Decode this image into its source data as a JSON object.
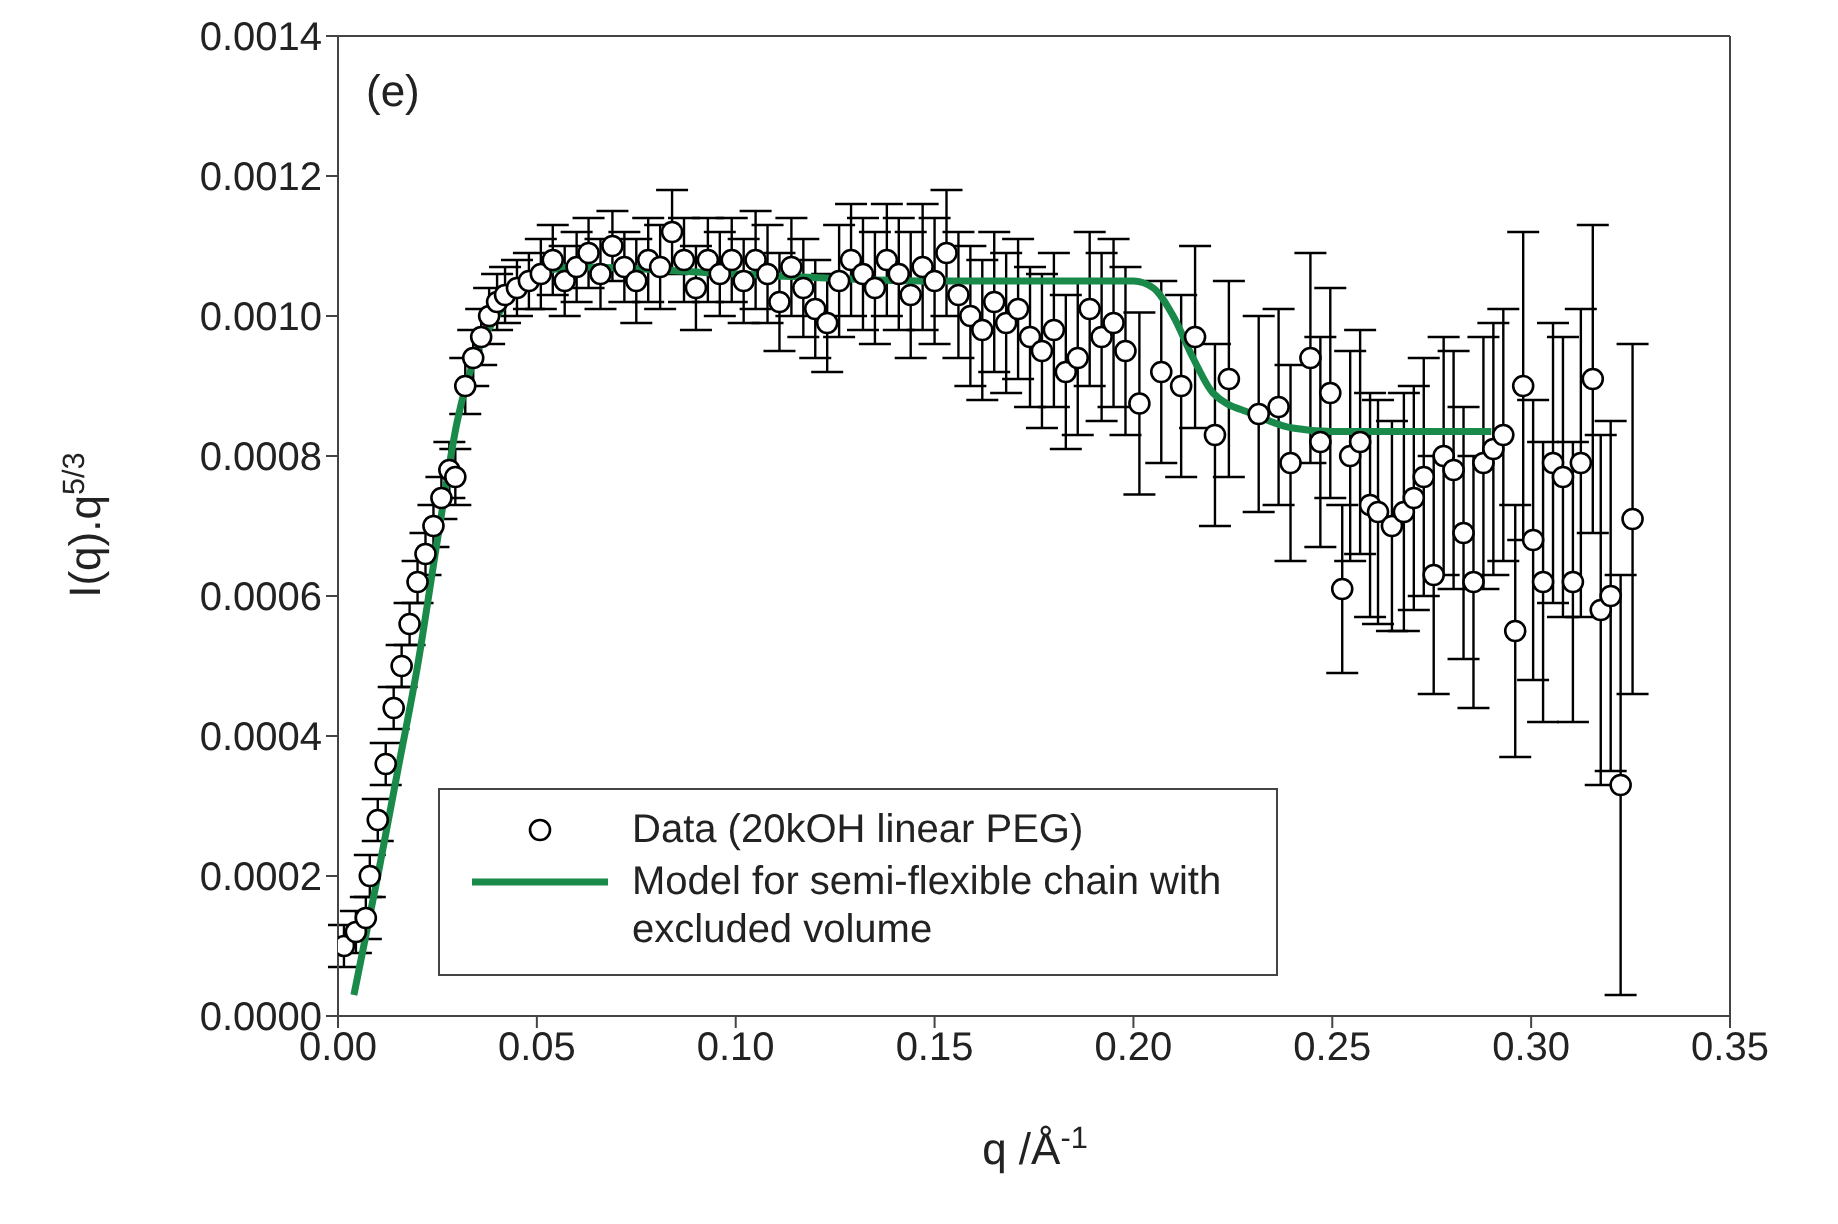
{
  "chart_data": {
    "type": "scatter",
    "xlabel": "q /Å$^{-1}$",
    "ylabel": "I(q).q$^{5/3}$",
    "annotations": [
      "(e)"
    ],
    "xlim": [
      0,
      0.35
    ],
    "xticks": [
      {
        "value": 0,
        "label": "0.00"
      },
      {
        "value": 0.05,
        "label": "0.05"
      },
      {
        "value": 0.1,
        "label": "0.10"
      },
      {
        "value": 0.15,
        "label": "0.15"
      },
      {
        "value": 0.2,
        "label": "0.20"
      },
      {
        "value": 0.25,
        "label": "0.25"
      },
      {
        "value": 0.3,
        "label": "0.30"
      },
      {
        "value": 0.35,
        "label": "0.35"
      }
    ],
    "ylim": [
      0,
      0.0014
    ],
    "yticks": [
      {
        "value": 0,
        "label": "0.0000"
      },
      {
        "value": 0.0002,
        "label": "0.0002"
      },
      {
        "value": 0.0004,
        "label": "0.0004"
      },
      {
        "value": 0.0006,
        "label": "0.0006"
      },
      {
        "value": 0.0008,
        "label": "0.0008"
      },
      {
        "value": 0.001,
        "label": "0.0010"
      },
      {
        "value": 0.0012,
        "label": "0.0012"
      },
      {
        "value": 0.0014,
        "label": "0.0014"
      }
    ],
    "legend": "bottom left",
    "marker": "circle",
    "series": [
      {
        "name": "Data (20kOH linear PEG)",
        "color": "#000000",
        "x": [
          0.0015,
          0.0045,
          0.007,
          0.008,
          0.01,
          0.012,
          0.014,
          0.016,
          0.018,
          0.02,
          0.022,
          0.024,
          0.026,
          0.028,
          0.0295,
          0.032,
          0.034,
          0.036,
          0.038,
          0.04,
          0.042,
          0.045,
          0.048,
          0.051,
          0.054,
          0.057,
          0.06,
          0.063,
          0.066,
          0.069,
          0.072,
          0.075,
          0.078,
          0.081,
          0.084,
          0.087,
          0.09,
          0.093,
          0.096,
          0.099,
          0.102,
          0.105,
          0.108,
          0.111,
          0.114,
          0.117,
          0.12,
          0.123,
          0.126,
          0.129,
          0.132,
          0.135,
          0.138,
          0.141,
          0.144,
          0.147,
          0.15,
          0.153,
          0.156,
          0.159,
          0.162,
          0.165,
          0.168,
          0.171,
          0.174,
          0.177,
          0.18,
          0.183,
          0.186,
          0.189,
          0.192,
          0.195,
          0.198,
          0.2015,
          0.207,
          0.212,
          0.2155,
          0.2205,
          0.224,
          0.2315,
          0.2365,
          0.2395,
          0.2445,
          0.247,
          0.2495,
          0.2525,
          0.2545,
          0.257,
          0.2595,
          0.2615,
          0.265,
          0.268,
          0.2705,
          0.273,
          0.2755,
          0.278,
          0.2805,
          0.283,
          0.2855,
          0.288,
          0.2905,
          0.293,
          0.296,
          0.298,
          0.3005,
          0.303,
          0.3055,
          0.308,
          0.3105,
          0.3125,
          0.3155,
          0.3175,
          0.32,
          0.3225,
          0.3255
        ],
        "values": [
          0.0001,
          0.00012,
          0.00014,
          0.0002,
          0.00028,
          0.00036,
          0.00044,
          0.0005,
          0.00056,
          0.00062,
          0.00066,
          0.0007,
          0.00074,
          0.00078,
          0.00077,
          0.0009,
          0.00094,
          0.00097,
          0.001,
          0.00102,
          0.00103,
          0.00104,
          0.00105,
          0.00106,
          0.00108,
          0.00105,
          0.00107,
          0.00109,
          0.00106,
          0.0011,
          0.00107,
          0.00105,
          0.00108,
          0.00107,
          0.00112,
          0.00108,
          0.00104,
          0.00108,
          0.00106,
          0.00108,
          0.00105,
          0.00108,
          0.00106,
          0.00102,
          0.00107,
          0.00104,
          0.00101,
          0.00099,
          0.00105,
          0.00108,
          0.00106,
          0.00104,
          0.00108,
          0.00106,
          0.00103,
          0.00107,
          0.00105,
          0.00109,
          0.00103,
          0.001,
          0.00098,
          0.00102,
          0.00099,
          0.00101,
          0.00097,
          0.00095,
          0.00098,
          0.00092,
          0.00094,
          0.00101,
          0.00097,
          0.00099,
          0.00095,
          0.000875,
          0.00092,
          0.0009,
          0.00097,
          0.00083,
          0.00091,
          0.00086,
          0.00087,
          0.00079,
          0.00094,
          0.00082,
          0.00089,
          0.00061,
          0.0008,
          0.00082,
          0.00073,
          0.00072,
          0.0007,
          0.00072,
          0.00074,
          0.00077,
          0.00063,
          0.0008,
          0.00078,
          0.00069,
          0.00062,
          0.00079,
          0.00081,
          0.00083,
          0.00055,
          0.0009,
          0.00068,
          0.00062,
          0.00079,
          0.00077,
          0.00062,
          0.00079,
          0.00091,
          0.00058,
          0.0006,
          0.00033,
          0.00071
        ],
        "errors": [
          3e-05,
          3e-05,
          3e-05,
          3e-05,
          3e-05,
          3e-05,
          3e-05,
          3e-05,
          3e-05,
          3e-05,
          3e-05,
          3e-05,
          3e-05,
          4e-05,
          4e-05,
          4e-05,
          4e-05,
          4e-05,
          4e-05,
          4e-05,
          4e-05,
          4e-05,
          4e-05,
          5e-05,
          5e-05,
          5e-05,
          5e-05,
          5e-05,
          5e-05,
          5e-05,
          5e-05,
          6e-05,
          6e-05,
          6e-05,
          6e-05,
          6e-05,
          6e-05,
          6e-05,
          6e-05,
          6e-05,
          6e-05,
          7e-05,
          7e-05,
          7e-05,
          7e-05,
          7e-05,
          7e-05,
          7e-05,
          8e-05,
          8e-05,
          8e-05,
          8e-05,
          8e-05,
          8e-05,
          9e-05,
          9e-05,
          9e-05,
          9e-05,
          9e-05,
          0.0001,
          0.0001,
          0.0001,
          0.0001,
          0.0001,
          0.0001,
          0.00011,
          0.00011,
          0.00011,
          0.00011,
          0.00011,
          0.00012,
          0.00012,
          0.00012,
          0.00013,
          0.00013,
          0.00013,
          0.00013,
          0.00013,
          0.00014,
          0.00014,
          0.00014,
          0.00014,
          0.00015,
          0.00015,
          0.00015,
          0.00012,
          0.00015,
          0.00016,
          0.00016,
          0.00016,
          0.00015,
          0.00017,
          0.00016,
          0.00017,
          0.00017,
          0.00017,
          0.00017,
          0.00018,
          0.00018,
          0.00018,
          0.00018,
          0.00018,
          0.00018,
          0.00022,
          0.0002,
          0.0002,
          0.0002,
          0.0002,
          0.0002,
          0.00022,
          0.00022,
          0.00025,
          0.00025,
          0.0003,
          0.00025
        ]
      },
      {
        "name": "Model for semi-flexible chain with excluded volume",
        "type": "line",
        "color": "#1a8a4a",
        "marker": "none",
        "line_style": "solid",
        "x": [
          0.004,
          0.01,
          0.015,
          0.02,
          0.025,
          0.03,
          0.035,
          0.04,
          0.045,
          0.05,
          0.06,
          0.1,
          0.15,
          0.2,
          0.205,
          0.21,
          0.215,
          0.22,
          0.23,
          0.24,
          0.25,
          0.26,
          0.29
        ],
        "values": [
          3e-05,
          0.0002,
          0.00035,
          0.0005,
          0.00068,
          0.00085,
          0.00095,
          0.001,
          0.00104,
          0.00106,
          0.00107,
          0.00106,
          0.00105,
          0.00105,
          0.00104,
          0.001,
          0.00094,
          0.00089,
          0.00086,
          0.00084,
          0.000835,
          0.000835,
          0.000835
        ]
      }
    ]
  }
}
